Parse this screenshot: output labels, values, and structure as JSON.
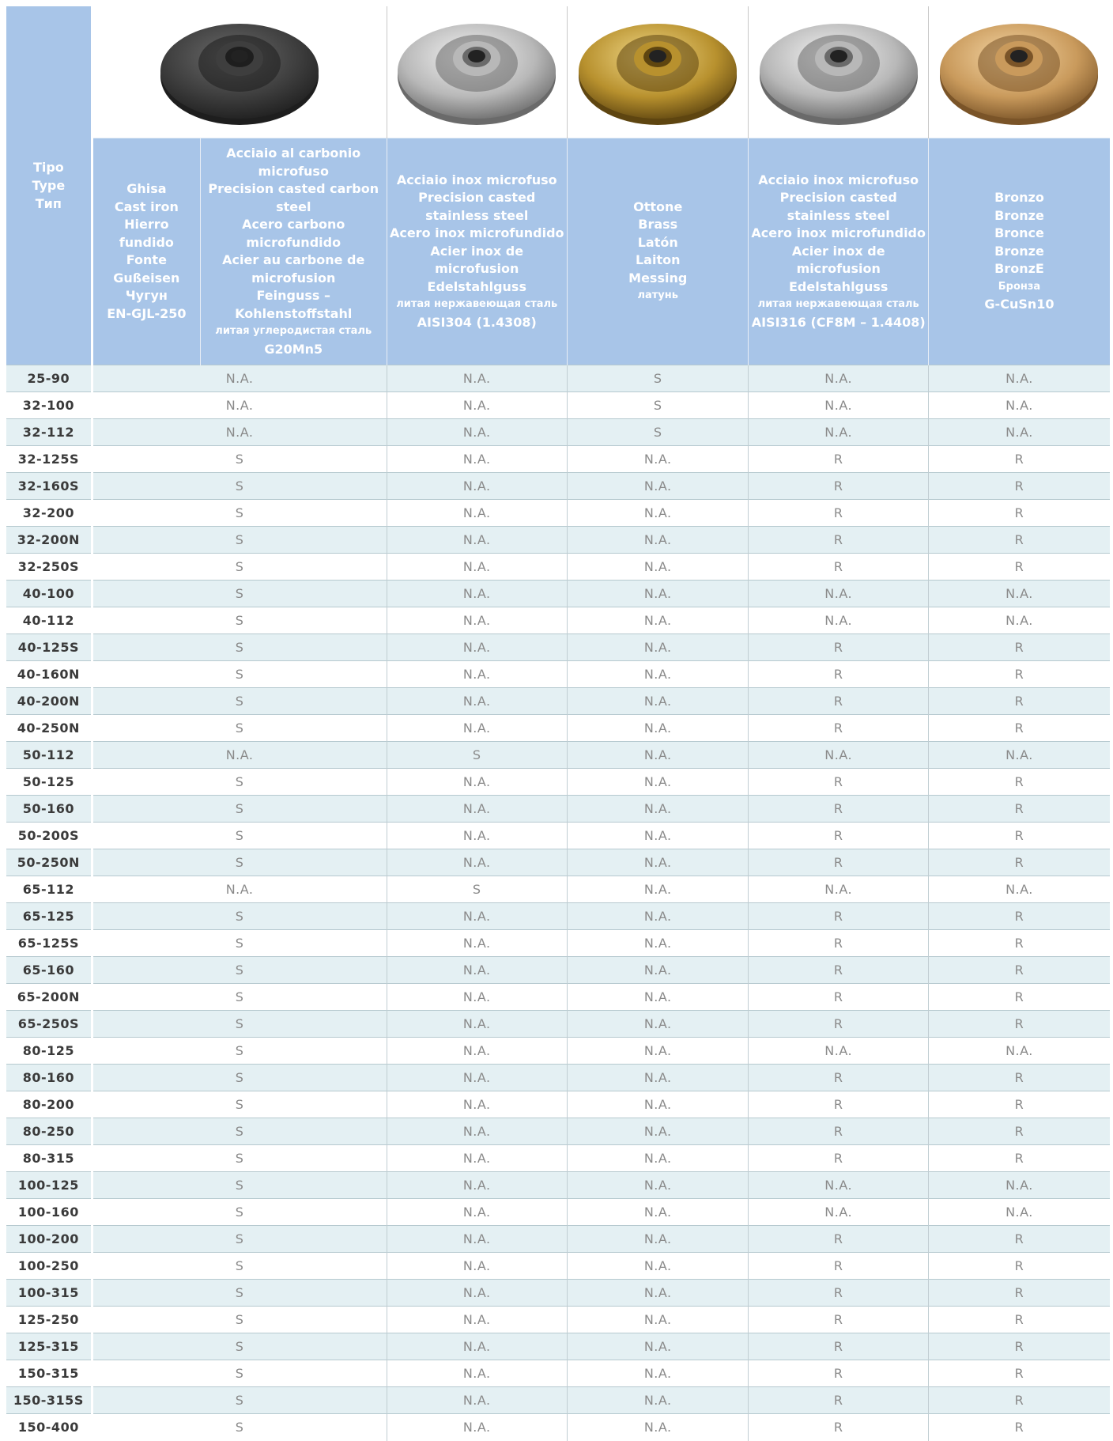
{
  "header": {
    "type_label": [
      "Tipo",
      "Type",
      "Тип"
    ],
    "columns": [
      {
        "lines": [
          "Ghisa",
          "Cast iron",
          "Hierro",
          "fundido",
          "Fonte",
          "Gußeisen",
          "Чугун"
        ],
        "code": "EN-GJL-250"
      },
      {
        "lines": [
          "Acciaio al carbonio",
          "microfuso",
          "Precision casted carbon",
          "steel",
          "Acero carbono",
          "microfundido",
          "Acier au carbone de",
          "microfusion",
          "Feinguss –",
          "Kohlenstoffstahl"
        ],
        "ru": "литая углеродистая сталь",
        "code": "G20Mn5"
      },
      {
        "lines": [
          "Acciaio inox microfuso",
          "Precision casted",
          "stainless steel",
          "Acero inox microfundido",
          "Acier inox de microfusion",
          "Edelstahlguss"
        ],
        "ru": "литая нержавеющая сталь",
        "code": "AISI304 (1.4308)"
      },
      {
        "lines": [
          "Ottone",
          "Brass",
          "Latón",
          "Laiton",
          "Messing"
        ],
        "ru": "латунь"
      },
      {
        "lines": [
          "Acciaio inox microfuso",
          "Precision casted",
          "stainless steel",
          "Acero inox microfundido",
          "Acier inox de microfusion",
          "Edelstahlguss"
        ],
        "ru": "литая нержавеющая сталь",
        "code": "AISI316 (CF8M – 1.4408)"
      },
      {
        "lines": [
          "Bronzo",
          "Bronze",
          "Bronce",
          "Bronze",
          "BronzE"
        ],
        "ru": "Бронза",
        "code": "G-CuSn10"
      }
    ]
  },
  "rows": [
    [
      "25-90",
      "N.A.",
      "N.A.",
      "S",
      "N.A.",
      "N.A."
    ],
    [
      "32-100",
      "N.A.",
      "N.A.",
      "S",
      "N.A.",
      "N.A."
    ],
    [
      "32-112",
      "N.A.",
      "N.A.",
      "S",
      "N.A.",
      "N.A."
    ],
    [
      "32-125S",
      "S",
      "N.A.",
      "N.A.",
      "R",
      "R"
    ],
    [
      "32-160S",
      "S",
      "N.A.",
      "N.A.",
      "R",
      "R"
    ],
    [
      "32-200",
      "S",
      "N.A.",
      "N.A.",
      "R",
      "R"
    ],
    [
      "32-200N",
      "S",
      "N.A.",
      "N.A.",
      "R",
      "R"
    ],
    [
      "32-250S",
      "S",
      "N.A.",
      "N.A.",
      "R",
      "R"
    ],
    [
      "40-100",
      "S",
      "N.A.",
      "N.A.",
      "N.A.",
      "N.A."
    ],
    [
      "40-112",
      "S",
      "N.A.",
      "N.A.",
      "N.A.",
      "N.A."
    ],
    [
      "40-125S",
      "S",
      "N.A.",
      "N.A.",
      "R",
      "R"
    ],
    [
      "40-160N",
      "S",
      "N.A.",
      "N.A.",
      "R",
      "R"
    ],
    [
      "40-200N",
      "S",
      "N.A.",
      "N.A.",
      "R",
      "R"
    ],
    [
      "40-250N",
      "S",
      "N.A.",
      "N.A.",
      "R",
      "R"
    ],
    [
      "50-112",
      "N.A.",
      "S",
      "N.A.",
      "N.A.",
      "N.A."
    ],
    [
      "50-125",
      "S",
      "N.A.",
      "N.A.",
      "R",
      "R"
    ],
    [
      "50-160",
      "S",
      "N.A.",
      "N.A.",
      "R",
      "R"
    ],
    [
      "50-200S",
      "S",
      "N.A.",
      "N.A.",
      "R",
      "R"
    ],
    [
      "50-250N",
      "S",
      "N.A.",
      "N.A.",
      "R",
      "R"
    ],
    [
      "65-112",
      "N.A.",
      "S",
      "N.A.",
      "N.A.",
      "N.A."
    ],
    [
      "65-125",
      "S",
      "N.A.",
      "N.A.",
      "R",
      "R"
    ],
    [
      "65-125S",
      "S",
      "N.A.",
      "N.A.",
      "R",
      "R"
    ],
    [
      "65-160",
      "S",
      "N.A.",
      "N.A.",
      "R",
      "R"
    ],
    [
      "65-200N",
      "S",
      "N.A.",
      "N.A.",
      "R",
      "R"
    ],
    [
      "65-250S",
      "S",
      "N.A.",
      "N.A.",
      "R",
      "R"
    ],
    [
      "80-125",
      "S",
      "N.A.",
      "N.A.",
      "N.A.",
      "N.A."
    ],
    [
      "80-160",
      "S",
      "N.A.",
      "N.A.",
      "R",
      "R"
    ],
    [
      "80-200",
      "S",
      "N.A.",
      "N.A.",
      "R",
      "R"
    ],
    [
      "80-250",
      "S",
      "N.A.",
      "N.A.",
      "R",
      "R"
    ],
    [
      "80-315",
      "S",
      "N.A.",
      "N.A.",
      "R",
      "R"
    ],
    [
      "100-125",
      "S",
      "N.A.",
      "N.A.",
      "N.A.",
      "N.A."
    ],
    [
      "100-160",
      "S",
      "N.A.",
      "N.A.",
      "N.A.",
      "N.A."
    ],
    [
      "100-200",
      "S",
      "N.A.",
      "N.A.",
      "R",
      "R"
    ],
    [
      "100-250",
      "S",
      "N.A.",
      "N.A.",
      "R",
      "R"
    ],
    [
      "100-315",
      "S",
      "N.A.",
      "N.A.",
      "R",
      "R"
    ],
    [
      "125-250",
      "S",
      "N.A.",
      "N.A.",
      "R",
      "R"
    ],
    [
      "125-315",
      "S",
      "N.A.",
      "N.A.",
      "R",
      "R"
    ],
    [
      "150-315",
      "S",
      "N.A.",
      "N.A.",
      "R",
      "R"
    ],
    [
      "150-315S",
      "S",
      "N.A.",
      "N.A.",
      "R",
      "R"
    ],
    [
      "150-400",
      "S",
      "N.A.",
      "N.A.",
      "R",
      "R"
    ]
  ]
}
